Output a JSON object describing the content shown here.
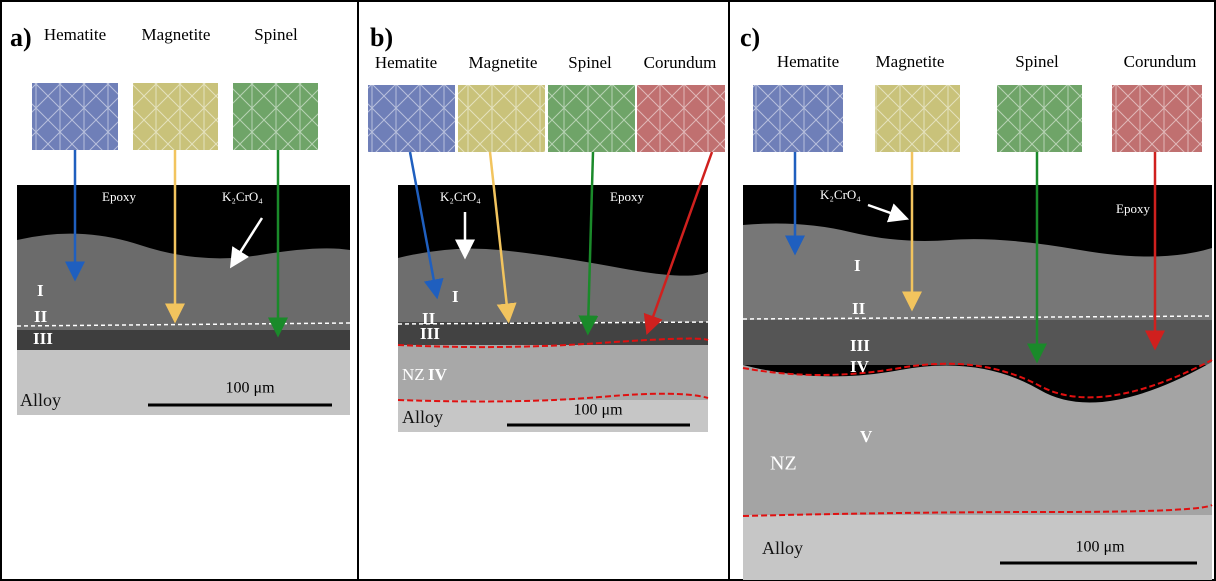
{
  "panels": [
    {
      "label": "a)",
      "phases": [
        "Hematite",
        "Magnetite",
        "Spinel"
      ],
      "epoxy": "Epoxy",
      "deposit": "K₂CrO₄",
      "layers": [
        "I",
        "II",
        "III"
      ],
      "alloy": "Alloy",
      "scale": "100 μm"
    },
    {
      "label": "b)",
      "phases": [
        "Hematite",
        "Magnetite",
        "Spinel",
        "Corundum"
      ],
      "epoxy": "Epoxy",
      "deposit": "K₂CrO₄",
      "layers": [
        "I",
        "II",
        "III",
        "IV"
      ],
      "zone": "NZ",
      "alloy": "Alloy",
      "scale": "100 μm"
    },
    {
      "label": "c)",
      "phases": [
        "Hematite",
        "Magnetite",
        "Spinel",
        "Corundum"
      ],
      "epoxy": "Epoxy",
      "deposit": "K₂CrO₄",
      "layers": [
        "I",
        "II",
        "III",
        "IV",
        "V"
      ],
      "zone": "NZ",
      "alloy": "Alloy",
      "scale": "100 μm"
    }
  ]
}
